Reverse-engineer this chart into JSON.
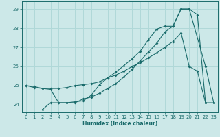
{
  "xlabel": "Humidex (Indice chaleur)",
  "bg_color": "#cce8e8",
  "grid_color": "#b0d8d8",
  "line_color": "#1a6b6b",
  "xlim": [
    -0.5,
    23.5
  ],
  "ylim": [
    23.6,
    29.4
  ],
  "yticks": [
    24,
    25,
    26,
    27,
    28,
    29
  ],
  "xticks": [
    0,
    1,
    2,
    3,
    4,
    5,
    6,
    7,
    8,
    9,
    10,
    11,
    12,
    13,
    14,
    15,
    16,
    17,
    18,
    19,
    20,
    21,
    22,
    23
  ],
  "line1_x": [
    0,
    1,
    2,
    3,
    4,
    5,
    6,
    7,
    8,
    9,
    10,
    11,
    12,
    13,
    14,
    15,
    16,
    17,
    18,
    19,
    20,
    21,
    22
  ],
  "line1_y": [
    25.0,
    24.9,
    24.85,
    24.85,
    24.85,
    24.9,
    25.0,
    25.05,
    25.1,
    25.2,
    25.4,
    25.55,
    25.75,
    26.0,
    26.2,
    26.45,
    26.7,
    27.0,
    27.3,
    27.75,
    26.0,
    25.75,
    24.1
  ],
  "line2_x": [
    2,
    3,
    4,
    5,
    6,
    7,
    8,
    9,
    10,
    11,
    12,
    13,
    14,
    15,
    16,
    17,
    18,
    19,
    20,
    22,
    23
  ],
  "line2_y": [
    23.75,
    24.1,
    24.1,
    24.1,
    24.1,
    24.3,
    24.4,
    24.6,
    24.85,
    25.1,
    25.45,
    25.85,
    26.3,
    26.75,
    27.2,
    27.8,
    28.1,
    29.0,
    29.0,
    26.0,
    24.1
  ],
  "line3_x": [
    0,
    1,
    2,
    3,
    4,
    5,
    6,
    7,
    8,
    9,
    10,
    11,
    12,
    13,
    14,
    15,
    16,
    17,
    18,
    19,
    20,
    21,
    22,
    23
  ],
  "line3_y": [
    25.0,
    24.95,
    24.85,
    24.8,
    24.1,
    24.1,
    24.15,
    24.2,
    24.5,
    25.05,
    25.4,
    25.7,
    26.05,
    26.4,
    26.8,
    27.4,
    27.95,
    28.1,
    28.1,
    29.0,
    29.0,
    28.7,
    24.1,
    24.1
  ]
}
